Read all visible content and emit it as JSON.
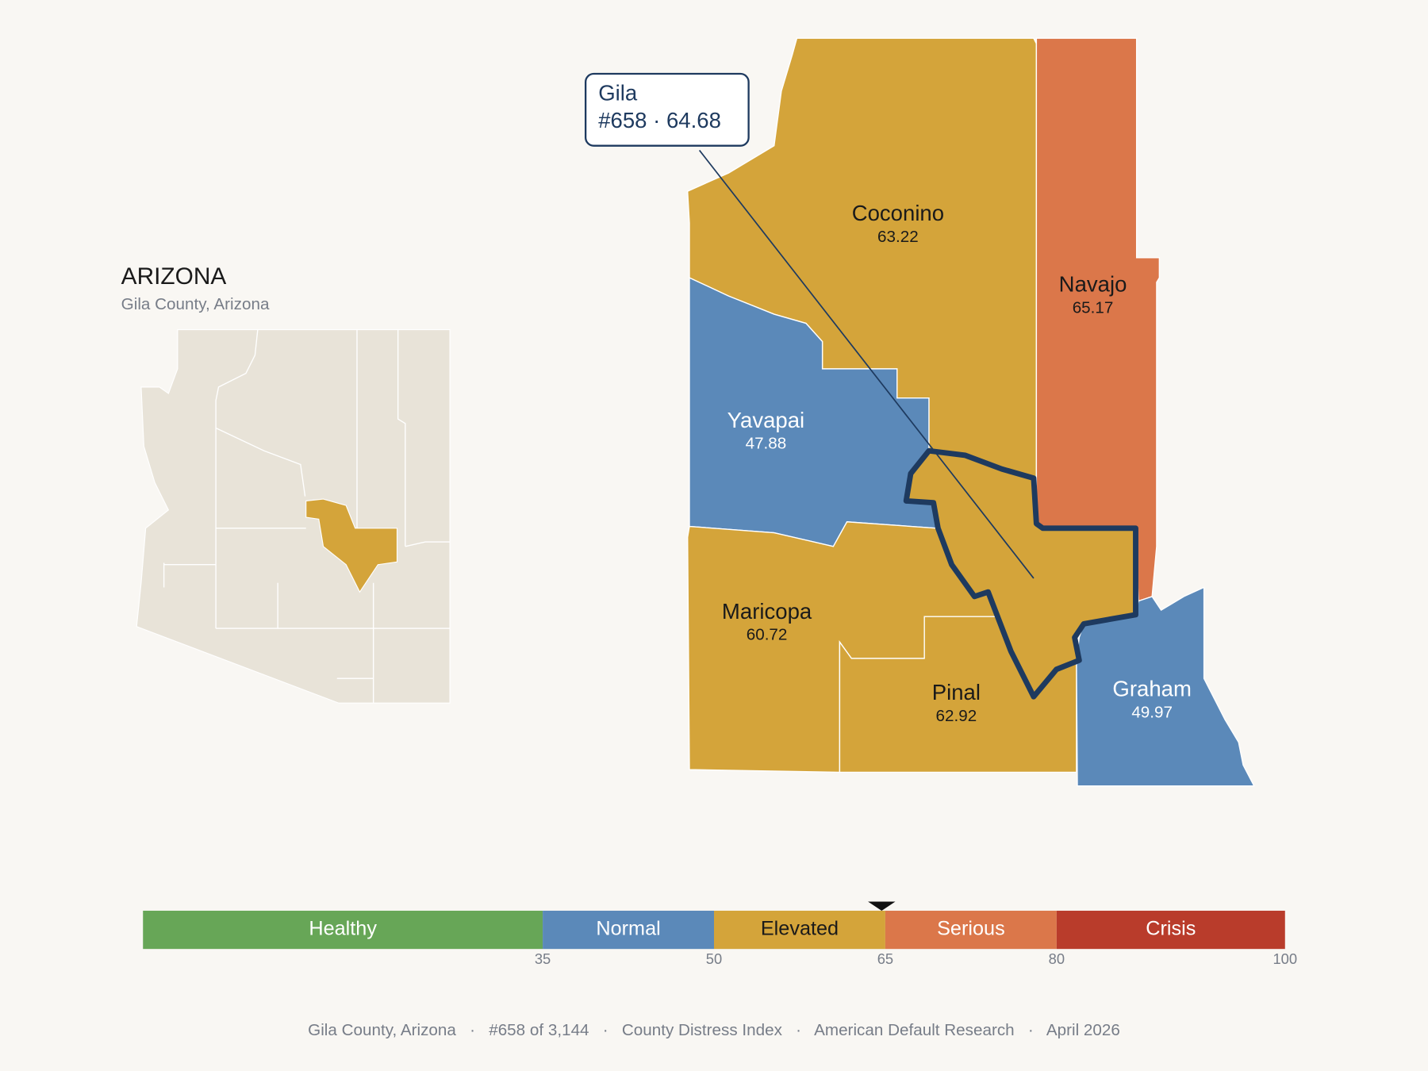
{
  "header": {
    "title": "ARIZONA",
    "subtitle": "Gila County, Arizona"
  },
  "map": {
    "counties": [
      {
        "name": "Coconino",
        "score": 63.22
      },
      {
        "name": "Navajo",
        "score": 65.17
      },
      {
        "name": "Yavapai",
        "score": 47.88
      },
      {
        "name": "Maricopa",
        "score": 60.72
      },
      {
        "name": "Pinal",
        "score": 62.92
      },
      {
        "name": "Graham",
        "score": 49.97
      }
    ],
    "focus": {
      "name": "Gila",
      "label": "#658 · 64.68",
      "score": 64.68
    }
  },
  "scale": {
    "lim": [
      0,
      100
    ],
    "ticks": [
      35,
      50,
      65,
      80,
      100
    ],
    "bands": [
      {
        "name": "Healthy",
        "color": "#67a657"
      },
      {
        "name": "Normal",
        "color": "#5b89b9"
      },
      {
        "name": "Elevated",
        "color": "#d4a43a"
      },
      {
        "name": "Serious",
        "color": "#db774a"
      },
      {
        "name": "Crisis",
        "color": "#b93c2b"
      }
    ]
  },
  "footer": "Gila County, Arizona   ·   #658 of 3,144   ·   County Distress Index   ·   American Default Research   ·   April 2026"
}
